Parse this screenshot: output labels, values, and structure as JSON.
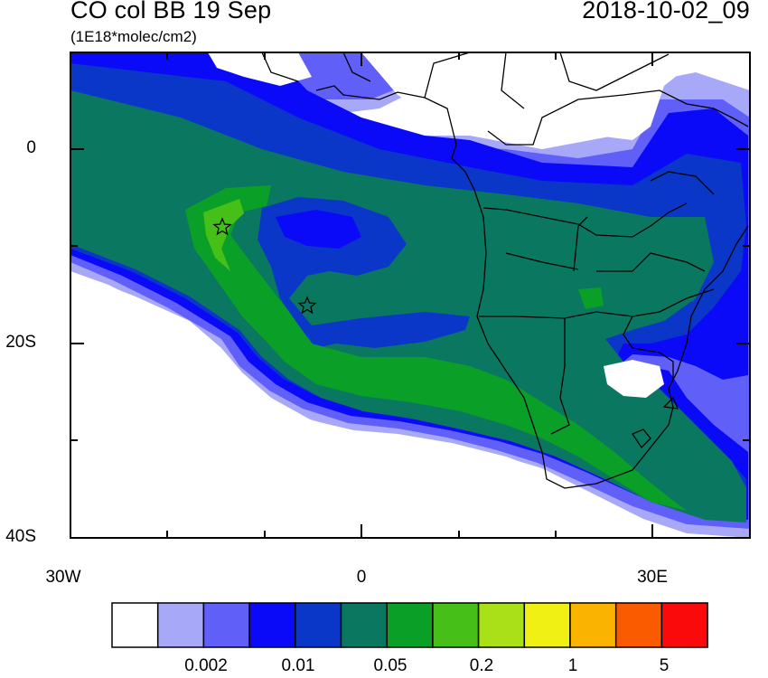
{
  "header": {
    "left_title": "CO col BB 19 Sep",
    "right_title": "2018-10-02_09",
    "units": "(1E18*molec/cm2)"
  },
  "axes": {
    "y_labels": [
      "0",
      "20S",
      "40S"
    ],
    "x_labels": [
      "30W",
      "0",
      "30E"
    ]
  },
  "colorbar": {
    "colors": [
      "#ffffff",
      "#a8a8f8",
      "#6060f8",
      "#0a0af8",
      "#0a37c8",
      "#0a7860",
      "#0aa028",
      "#46c018",
      "#aae018",
      "#f0f014",
      "#fab400",
      "#fa5a00",
      "#fa0a0a"
    ],
    "labels": [
      "0.002",
      "0.01",
      "0.05",
      "0.2",
      "1",
      "5"
    ]
  },
  "map_markers": [
    {
      "type": "star",
      "lon": -14.5,
      "lat": -8
    },
    {
      "type": "star",
      "lon": -5.7,
      "lat": -16
    }
  ]
}
